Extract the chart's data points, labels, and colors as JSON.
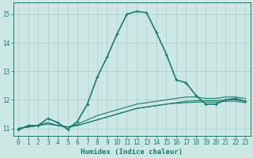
{
  "title": "",
  "xlabel": "Humidex (Indice chaleur)",
  "ylabel": "",
  "xlim": [
    -0.5,
    23.5
  ],
  "ylim": [
    10.75,
    15.4
  ],
  "xticks": [
    0,
    1,
    2,
    3,
    4,
    5,
    6,
    7,
    8,
    9,
    10,
    11,
    12,
    13,
    14,
    15,
    16,
    17,
    18,
    19,
    20,
    21,
    22,
    23
  ],
  "yticks": [
    11,
    12,
    13,
    14,
    15
  ],
  "bg_color": "#cce8e5",
  "line_color": "#1a7a6e",
  "grid_color": "#aaccca",
  "lines": [
    {
      "x": [
        0,
        1,
        2,
        3,
        4,
        5,
        6,
        7,
        8,
        9,
        10,
        11,
        12,
        13,
        14,
        15,
        16,
        17,
        18,
        19,
        20,
        21,
        22,
        23
      ],
      "y": [
        10.95,
        11.1,
        11.1,
        11.35,
        11.2,
        10.97,
        11.25,
        11.85,
        12.8,
        13.5,
        14.3,
        15.0,
        15.1,
        15.05,
        14.35,
        13.6,
        12.7,
        12.6,
        12.15,
        11.85,
        11.85,
        12.0,
        12.05,
        11.95
      ],
      "lw": 1.2,
      "marker": true
    },
    {
      "x": [
        0,
        1,
        2,
        3,
        4,
        5,
        6,
        7,
        8,
        9,
        10,
        11,
        12,
        13,
        14,
        15,
        16,
        17,
        18,
        19,
        20,
        21,
        22,
        23
      ],
      "y": [
        11.0,
        11.05,
        11.1,
        11.2,
        11.1,
        11.05,
        11.1,
        11.2,
        11.3,
        11.4,
        11.5,
        11.6,
        11.7,
        11.75,
        11.8,
        11.85,
        11.9,
        11.95,
        11.97,
        11.97,
        11.97,
        12.0,
        12.0,
        11.95
      ],
      "lw": 0.8,
      "marker": false
    },
    {
      "x": [
        0,
        1,
        2,
        3,
        4,
        5,
        6,
        7,
        8,
        9,
        10,
        11,
        12,
        13,
        14,
        15,
        16,
        17,
        18,
        19,
        20,
        21,
        22,
        23
      ],
      "y": [
        11.0,
        11.05,
        11.1,
        11.2,
        11.1,
        11.05,
        11.15,
        11.3,
        11.45,
        11.55,
        11.65,
        11.75,
        11.85,
        11.9,
        11.95,
        12.0,
        12.05,
        12.1,
        12.1,
        12.05,
        12.05,
        12.1,
        12.1,
        12.05
      ],
      "lw": 0.8,
      "marker": false
    },
    {
      "x": [
        0,
        1,
        2,
        3,
        4,
        5,
        6,
        7,
        8,
        9,
        10,
        11,
        12,
        13,
        14,
        15,
        16,
        17,
        18,
        19,
        20,
        21,
        22,
        23
      ],
      "y": [
        11.0,
        11.05,
        11.1,
        11.15,
        11.1,
        11.05,
        11.1,
        11.2,
        11.3,
        11.4,
        11.5,
        11.6,
        11.7,
        11.75,
        11.8,
        11.85,
        11.88,
        11.9,
        11.92,
        11.92,
        11.92,
        11.95,
        11.95,
        11.9
      ],
      "lw": 0.8,
      "marker": false
    }
  ]
}
